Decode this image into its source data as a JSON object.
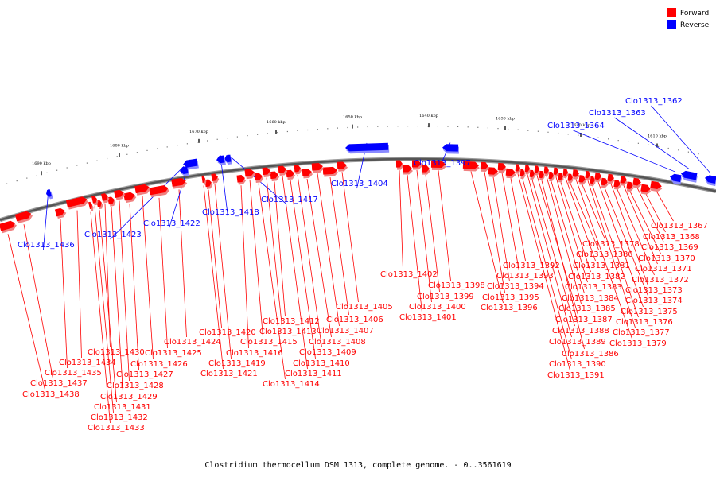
{
  "caption": "Clostridium thermocellum DSM 1313, complete genome. - 0..3561619",
  "legend": {
    "forward": {
      "label": "Forward",
      "color": "#ff0000"
    },
    "reverse": {
      "label": "Reverse",
      "color": "#0000ff"
    }
  },
  "colors": {
    "forward": "#ff0000",
    "forward_shadow": "#f08080",
    "reverse": "#0000ff",
    "reverse_shadow": "#8a8aff",
    "backbone": "#555555"
  },
  "ticks": [
    {
      "text": "1610 kbp",
      "kbp": 1610
    },
    {
      "text": "1620 kbp",
      "kbp": 1620
    },
    {
      "text": "1630 kbp",
      "kbp": 1630
    },
    {
      "text": "1640 kbp",
      "kbp": 1640
    },
    {
      "text": "1650 kbp",
      "kbp": 1650
    },
    {
      "text": "1660 kbp",
      "kbp": 1660
    },
    {
      "text": "1670 kbp",
      "kbp": 1670
    },
    {
      "text": "1680 kbp",
      "kbp": 1680
    },
    {
      "text": "1690 kbp",
      "kbp": 1690
    }
  ],
  "reverse_genes": [
    "Clo1313_1362",
    "Clo1313_1363",
    "Clo1313_1364",
    "Clo1313_1397",
    "Clo1313_1404",
    "Clo1313_1417",
    "Clo1313_1418",
    "Clo1313_1422",
    "Clo1313_1423",
    "Clo1313_1436"
  ],
  "forward_genes": [
    "Clo1313_1367",
    "Clo1313_1368",
    "Clo1313_1369",
    "Clo1313_1370",
    "Clo1313_1371",
    "Clo1313_1372",
    "Clo1313_1373",
    "Clo1313_1374",
    "Clo1313_1375",
    "Clo1313_1376",
    "Clo1313_1377",
    "Clo1313_1378",
    "Clo1313_1379",
    "Clo1313_1380",
    "Clo1313_1381",
    "Clo1313_1382",
    "Clo1313_1383",
    "Clo1313_1384",
    "Clo1313_1385",
    "Clo1313_1386",
    "Clo1313_1387",
    "Clo1313_1388",
    "Clo1313_1389",
    "Clo1313_1390",
    "Clo1313_1391",
    "Clo1313_1392",
    "Clo1313_1393",
    "Clo1313_1394",
    "Clo1313_1395",
    "Clo1313_1396",
    "Clo1313_1398",
    "Clo1313_1399",
    "Clo1313_1400",
    "Clo1313_1401",
    "Clo1313_1402",
    "Clo1313_1405",
    "Clo1313_1406",
    "Clo1313_1407",
    "Clo1313_1408",
    "Clo1313_1409",
    "Clo1313_1410",
    "Clo1313_1411",
    "Clo1313_1412",
    "Clo1313_1413",
    "Clo1313_1414",
    "Clo1313_1415",
    "Clo1313_1416",
    "Clo1313_1419",
    "Clo1313_1420",
    "Clo1313_1421",
    "Clo1313_1424",
    "Clo1313_1425",
    "Clo1313_1426",
    "Clo1313_1427",
    "Clo1313_1428",
    "Clo1313_1429",
    "Clo1313_1430",
    "Clo1313_1431",
    "Clo1313_1432",
    "Clo1313_1433",
    "Clo1313_1434",
    "Clo1313_1435",
    "Clo1313_1437",
    "Clo1313_1438"
  ]
}
